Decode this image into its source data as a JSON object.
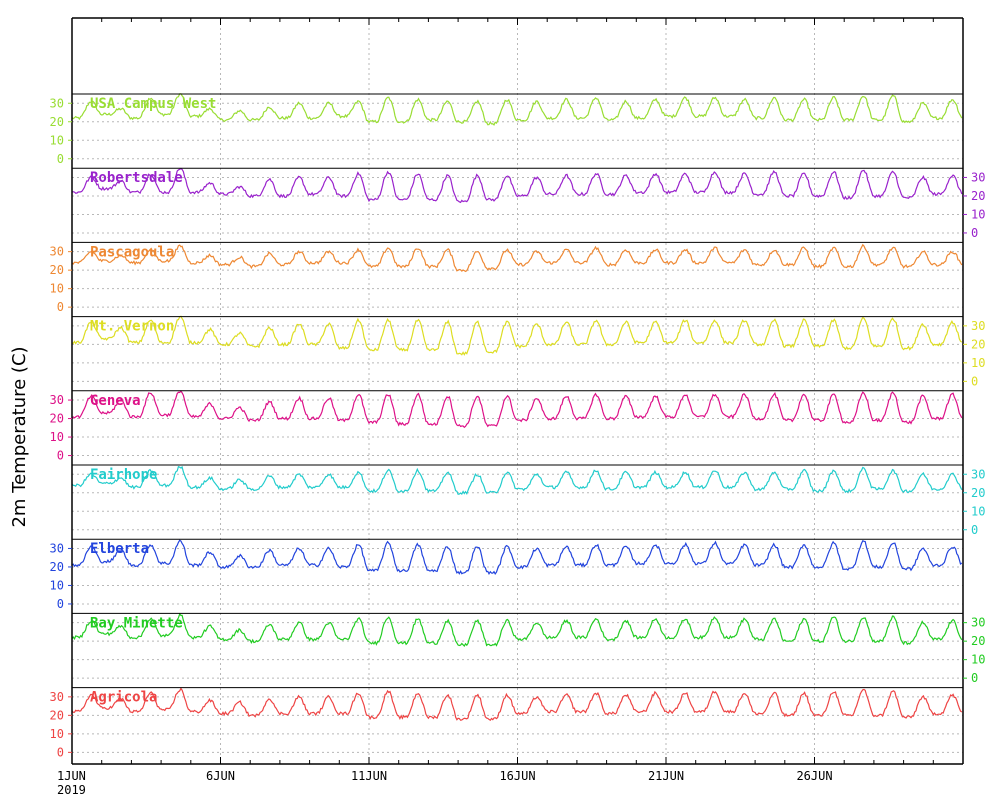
{
  "chart_data": {
    "type": "line",
    "ylabel": "2m Temperature (C)",
    "x_start_label": "1JUN",
    "x_year_label": "2019",
    "x_ticks": [
      {
        "day": 1,
        "label": "1JUN"
      },
      {
        "day": 6,
        "label": "6JUN"
      },
      {
        "day": 11,
        "label": "11JUN"
      },
      {
        "day": 16,
        "label": "16JUN"
      },
      {
        "day": 21,
        "label": "21JUN"
      },
      {
        "day": 26,
        "label": "26JUN"
      }
    ],
    "x_domain_days": [
      1,
      31
    ],
    "y_ticks": [
      0,
      10,
      20,
      30
    ],
    "ylim": [
      -5,
      35
    ],
    "grid": true,
    "series": [
      {
        "name": "USA Campus West",
        "color": "#99dd33",
        "axis_side": "left",
        "daily_max": [
          31,
          27,
          33,
          35,
          27,
          26,
          28,
          30,
          30,
          31,
          33,
          32,
          31,
          31,
          32,
          31,
          32,
          33,
          31,
          32,
          33,
          33,
          32,
          33,
          32,
          33,
          34,
          34,
          30,
          32
        ],
        "daily_min": [
          22,
          24,
          22,
          24,
          23,
          21,
          21,
          22,
          22,
          23,
          20,
          20,
          21,
          20,
          19,
          21,
          22,
          22,
          21,
          22,
          23,
          23,
          23,
          22,
          21,
          21,
          21,
          21,
          20,
          22
        ]
      },
      {
        "name": "Robertsdale",
        "color": "#9922cc",
        "axis_side": "right",
        "daily_max": [
          30,
          28,
          32,
          35,
          27,
          25,
          29,
          30,
          30,
          32,
          33,
          32,
          31,
          31,
          31,
          30,
          31,
          32,
          31,
          32,
          32,
          33,
          32,
          33,
          32,
          33,
          34,
          33,
          30,
          31
        ],
        "daily_min": [
          22,
          24,
          22,
          22,
          22,
          21,
          20,
          20,
          21,
          20,
          18,
          18,
          18,
          17,
          18,
          20,
          21,
          21,
          21,
          22,
          22,
          22,
          22,
          21,
          20,
          20,
          19,
          20,
          19,
          21
        ]
      },
      {
        "name": "Pascagoula",
        "color": "#ee8833",
        "axis_side": "left",
        "daily_max": [
          30,
          28,
          31,
          33,
          28,
          27,
          29,
          30,
          30,
          31,
          32,
          32,
          31,
          30,
          31,
          30,
          31,
          32,
          31,
          31,
          31,
          32,
          31,
          31,
          32,
          32,
          33,
          32,
          30,
          30
        ],
        "daily_min": [
          24,
          25,
          24,
          25,
          24,
          23,
          22,
          23,
          24,
          24,
          22,
          22,
          22,
          20,
          21,
          23,
          24,
          24,
          23,
          24,
          24,
          24,
          24,
          23,
          23,
          22,
          22,
          23,
          22,
          23
        ]
      },
      {
        "name": "Mt. Vernon",
        "color": "#dddd22",
        "axis_side": "right",
        "daily_max": [
          32,
          29,
          33,
          35,
          28,
          26,
          29,
          31,
          31,
          33,
          33,
          33,
          32,
          32,
          32,
          31,
          32,
          33,
          32,
          32,
          33,
          33,
          33,
          33,
          33,
          33,
          34,
          34,
          31,
          32
        ],
        "daily_min": [
          21,
          23,
          21,
          21,
          21,
          20,
          19,
          20,
          20,
          18,
          17,
          17,
          17,
          15,
          16,
          19,
          20,
          20,
          20,
          21,
          21,
          21,
          21,
          20,
          19,
          19,
          18,
          19,
          18,
          20
        ]
      },
      {
        "name": "Geneva",
        "color": "#dd1188",
        "axis_side": "left",
        "daily_max": [
          32,
          30,
          34,
          35,
          28,
          26,
          29,
          31,
          31,
          33,
          33,
          33,
          32,
          32,
          32,
          31,
          32,
          33,
          32,
          32,
          33,
          33,
          33,
          33,
          33,
          33,
          34,
          34,
          32,
          33
        ],
        "daily_min": [
          21,
          23,
          21,
          22,
          21,
          20,
          19,
          20,
          20,
          19,
          18,
          17,
          17,
          16,
          16,
          19,
          20,
          20,
          20,
          21,
          21,
          21,
          21,
          20,
          19,
          19,
          18,
          19,
          18,
          20
        ]
      },
      {
        "name": "Fairhope",
        "color": "#22cccc",
        "axis_side": "right",
        "daily_max": [
          30,
          28,
          32,
          34,
          28,
          27,
          29,
          30,
          30,
          31,
          32,
          32,
          31,
          30,
          31,
          30,
          31,
          32,
          31,
          31,
          31,
          32,
          31,
          31,
          32,
          32,
          33,
          32,
          30,
          30
        ],
        "daily_min": [
          24,
          25,
          23,
          24,
          23,
          22,
          22,
          23,
          23,
          23,
          21,
          21,
          21,
          20,
          20,
          22,
          23,
          23,
          22,
          23,
          23,
          23,
          23,
          22,
          22,
          21,
          21,
          22,
          21,
          22
        ]
      },
      {
        "name": "Elberta",
        "color": "#2244dd",
        "axis_side": "left",
        "daily_max": [
          31,
          29,
          32,
          34,
          28,
          26,
          29,
          30,
          30,
          32,
          33,
          32,
          31,
          31,
          31,
          30,
          31,
          32,
          31,
          32,
          32,
          33,
          32,
          32,
          32,
          33,
          34,
          33,
          30,
          31
        ],
        "daily_min": [
          21,
          23,
          21,
          22,
          21,
          20,
          20,
          21,
          21,
          20,
          18,
          18,
          18,
          17,
          17,
          20,
          21,
          21,
          21,
          22,
          22,
          22,
          22,
          21,
          20,
          20,
          19,
          20,
          19,
          21
        ]
      },
      {
        "name": "Bay Minette",
        "color": "#22cc22",
        "axis_side": "right",
        "daily_max": [
          31,
          28,
          32,
          34,
          28,
          26,
          29,
          30,
          30,
          32,
          33,
          32,
          31,
          31,
          31,
          30,
          31,
          32,
          31,
          32,
          32,
          33,
          32,
          32,
          32,
          33,
          33,
          33,
          30,
          31
        ],
        "daily_min": [
          22,
          24,
          22,
          23,
          22,
          21,
          20,
          21,
          21,
          21,
          19,
          19,
          19,
          18,
          18,
          21,
          22,
          22,
          21,
          22,
          22,
          22,
          22,
          21,
          20,
          20,
          20,
          20,
          19,
          21
        ]
      },
      {
        "name": "Agricola",
        "color": "#ee4444",
        "axis_side": "left",
        "daily_max": [
          31,
          29,
          32,
          34,
          28,
          27,
          29,
          30,
          30,
          32,
          33,
          32,
          31,
          31,
          31,
          30,
          31,
          32,
          31,
          32,
          32,
          33,
          32,
          32,
          32,
          33,
          34,
          33,
          30,
          31
        ],
        "daily_min": [
          22,
          24,
          22,
          23,
          22,
          21,
          20,
          21,
          21,
          21,
          19,
          19,
          19,
          18,
          18,
          21,
          22,
          22,
          21,
          22,
          22,
          22,
          22,
          21,
          20,
          20,
          20,
          20,
          19,
          21
        ]
      }
    ]
  }
}
